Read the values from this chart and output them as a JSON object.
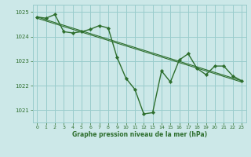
{
  "background_color": "#cce8e8",
  "grid_color": "#99cccc",
  "line_color": "#2d6e2d",
  "marker_color": "#2d6e2d",
  "xlabel": "Graphe pression niveau de la mer (hPa)",
  "ylim": [
    1020.5,
    1025.3
  ],
  "xlim": [
    -0.5,
    23.5
  ],
  "yticks": [
    1021,
    1022,
    1023,
    1024,
    1025
  ],
  "xticks": [
    0,
    1,
    2,
    3,
    4,
    5,
    6,
    7,
    8,
    9,
    10,
    11,
    12,
    13,
    14,
    15,
    16,
    17,
    18,
    19,
    20,
    21,
    22,
    23
  ],
  "series": [
    {
      "x": [
        0,
        1,
        2,
        3,
        4,
        5,
        6,
        7,
        8,
        9,
        10,
        11,
        12,
        13,
        14,
        15,
        16,
        17,
        18,
        19,
        20,
        21,
        22,
        23
      ],
      "y": [
        1024.8,
        1024.75,
        1024.9,
        1024.2,
        1024.15,
        1024.2,
        1024.3,
        1024.45,
        1024.35,
        1023.15,
        1022.3,
        1021.85,
        1020.85,
        1020.9,
        1022.6,
        1022.15,
        1023.05,
        1023.3,
        1022.7,
        1022.45,
        1022.8,
        1022.8,
        1022.4,
        1022.2
      ]
    },
    {
      "x": [
        0,
        23
      ],
      "y": [
        1024.8,
        1022.2
      ]
    },
    {
      "x": [
        0,
        23
      ],
      "y": [
        1024.75,
        1022.15
      ]
    }
  ]
}
